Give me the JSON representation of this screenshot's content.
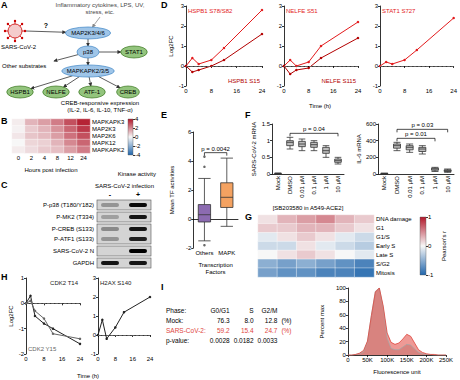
{
  "diagram": {
    "panel": "A",
    "stimulus": "Inflammatory cytokines, LPS, UV, stress, etc.",
    "virus": "SARS-CoV-2",
    "virus_link": "?",
    "nodes": [
      {
        "label": "MAP2K3/4/6",
        "kind": "kinase"
      },
      {
        "label": "p38",
        "kind": "kinase"
      },
      {
        "label": "STAT1",
        "kind": "substrate"
      },
      {
        "label": "MAPKAPK2/3/5",
        "kind": "kinase"
      },
      {
        "label": "HSPB1",
        "kind": "substrate"
      },
      {
        "label": "NELFE",
        "kind": "substrate"
      },
      {
        "label": "ATF-1",
        "kind": "substrate"
      },
      {
        "label": "CREB",
        "kind": "substrate"
      }
    ],
    "edges": [
      [
        0,
        1
      ],
      [
        1,
        2
      ],
      [
        1,
        3
      ],
      [
        3,
        4
      ],
      [
        3,
        5
      ],
      [
        3,
        6
      ],
      [
        3,
        7
      ]
    ],
    "side_branch": "Other substrates",
    "output": "CREB-responsive expression (IL-2, IL-6, IL-10, TNF-α)"
  },
  "blot": {
    "panel": "C",
    "title": "SARS-CoV-2 infection",
    "lanes": [
      "-",
      "+"
    ],
    "rows": [
      {
        "labels": [
          "P-p38 (T180/Y182)"
        ],
        "bands": [
          [
            0.3,
            0.95
          ]
        ]
      },
      {
        "labels": [
          "P-MK2 (T334)"
        ],
        "bands": [
          [
            0.25,
            0.9
          ]
        ]
      },
      {
        "labels": [
          "P-CREB (S133)",
          "P-ATF1 (S133)"
        ],
        "bands": [
          [
            0.35,
            0.9
          ],
          [
            0.3,
            0.85
          ]
        ]
      },
      {
        "labels": [
          "SARS-CoV-2 N"
        ],
        "bands": [
          [
            0,
            1
          ]
        ]
      },
      {
        "labels": [
          "GAPDH"
        ],
        "bands": [
          [
            0.9,
            0.9
          ]
        ]
      }
    ]
  },
  "chart_data": [
    {
      "panel": "B",
      "type": "heatmap",
      "categories": [
        "0",
        "2",
        "4",
        "8",
        "12",
        "24"
      ],
      "rows": [
        "MAPKAPK3",
        "MAP2K3",
        "MAP2K6",
        "MAPK12",
        "MAPKAPK2"
      ],
      "cells": [
        [
          0.2,
          1.2,
          1.6,
          2.2,
          3.0,
          3.8
        ],
        [
          0.1,
          0.8,
          1.2,
          1.8,
          2.6,
          3.4
        ],
        [
          0.3,
          0.9,
          1.1,
          1.6,
          2.4,
          3.0
        ],
        [
          0.0,
          0.6,
          0.7,
          1.2,
          2.0,
          2.6
        ],
        [
          0.2,
          0.5,
          0.8,
          1.0,
          1.6,
          2.2
        ]
      ],
      "x_label": "Hours post infection",
      "colorbar": {
        "label": "Kinase activity",
        "range": [
          -4,
          4
        ],
        "ticks": [
          -4,
          -2,
          0,
          2,
          4
        ],
        "colors": [
          "#2166ac",
          "#f7f7f7",
          "#b2182b"
        ]
      }
    },
    {
      "panel": "D",
      "type": "line",
      "x_label": "Time (h)",
      "y_label": "Log2FC",
      "hline": 0,
      "subplots": [
        {
          "x": [
            0,
            2,
            4,
            8,
            12,
            24
          ],
          "xlim": [
            0,
            24
          ],
          "xticks": [
            0,
            8,
            16,
            24
          ],
          "ylim": [
            -1,
            3
          ],
          "yticks": [
            -1,
            0,
            1,
            2,
            3
          ],
          "series": [
            {
              "name": "HSPB1 S78/S82",
              "color": "#e31a1c",
              "values": [
                0,
                0.4,
                0.1,
                0.3,
                0.9,
                2.8
              ]
            },
            {
              "name": "HSPB1 S15",
              "color": "#b30000",
              "values": [
                0,
                -0.3,
                -0.2,
                0,
                0.3,
                1.6
              ]
            }
          ]
        },
        {
          "x": [
            0,
            2,
            4,
            8,
            12,
            24
          ],
          "xlim": [
            0,
            24
          ],
          "xticks": [
            0,
            8,
            16,
            24
          ],
          "ylim": [
            -1,
            3
          ],
          "yticks": [
            -1,
            0,
            1,
            2,
            3
          ],
          "series": [
            {
              "name": "NELFE S51",
              "color": "#e31a1c",
              "values": [
                0,
                0.3,
                0,
                0.2,
                1.0,
                2.2
              ]
            },
            {
              "name": "NELFE S115",
              "color": "#b30000",
              "values": [
                0,
                -0.4,
                -0.2,
                -0.1,
                0.4,
                1.4
              ]
            }
          ]
        },
        {
          "x": [
            0,
            2,
            4,
            8,
            12,
            24
          ],
          "xlim": [
            0,
            24
          ],
          "xticks": [
            0,
            8,
            16,
            24
          ],
          "ylim": [
            -1,
            3
          ],
          "yticks": [
            -1,
            0,
            1,
            2,
            3
          ],
          "series": [
            {
              "name": "STAT1 S727",
              "color": "#e31a1c",
              "values": [
                0,
                0.2,
                0.1,
                0.3,
                0.8,
                2.4
              ]
            }
          ]
        }
      ]
    },
    {
      "panel": "E",
      "type": "boxplot",
      "categories": [
        "Others",
        "MAPK"
      ],
      "x_label": "Transcription Factors",
      "y_label": "Mean TF activities",
      "ylim": [
        -2,
        6
      ],
      "yticks": [
        -2,
        0,
        2,
        4,
        6
      ],
      "boxes": [
        [
          -1.5,
          -0.2,
          0.3,
          1.0,
          2.8
        ],
        [
          -0.5,
          0.8,
          1.5,
          2.5,
          4.2
        ]
      ],
      "outliers": [
        [
          3.6,
          4.3,
          -1.8
        ],
        []
      ],
      "colors": [
        "#8c6bb1",
        "#f4a261"
      ],
      "annotations": [
        {
          "text": "p = 0.0042",
          "between": [
            0,
            1
          ]
        }
      ]
    },
    {
      "panel": "F",
      "type": "boxplot",
      "categories": [
        "Mock",
        "DMSO",
        "0.01 μM",
        "0.1 μM",
        "1 μM",
        "10 μM"
      ],
      "caption": "[SB203580 in A549-ACE2]",
      "color": "#bdbdbd",
      "subplots": [
        {
          "y_label": "SARS-CoV-2 mRNA",
          "ylim": [
            0,
            1.5
          ],
          "yticks": [
            0,
            0.5,
            1,
            1.5
          ],
          "boxes": [
            [
              0,
              0,
              0.01,
              0.02,
              0.03
            ],
            [
              0.75,
              0.85,
              0.95,
              1.0,
              1.1
            ],
            [
              0.7,
              0.82,
              0.9,
              0.98,
              1.05
            ],
            [
              0.7,
              0.8,
              0.88,
              0.95,
              1.0
            ],
            [
              0.5,
              0.62,
              0.7,
              0.8,
              0.85
            ],
            [
              0.3,
              0.35,
              0.4,
              0.45,
              0.5
            ]
          ],
          "annotations": [
            {
              "text": "p = 0.04",
              "between": [
                1,
                5
              ]
            }
          ]
        },
        {
          "y_label": "IL-6 mRNA",
          "ylim": [
            0,
            600
          ],
          "yticks": [
            0,
            200,
            400,
            600
          ],
          "boxes": [
            [
              0,
              2,
              5,
              8,
              10
            ],
            [
              280,
              310,
              340,
              360,
              380
            ],
            [
              260,
              290,
              320,
              340,
              360
            ],
            [
              240,
              270,
              300,
              320,
              340
            ],
            [
              30,
              45,
              60,
              70,
              80
            ],
            [
              20,
              30,
              40,
              50,
              60
            ]
          ],
          "annotations": [
            {
              "text": "p = 0.01",
              "between": [
                1,
                4
              ]
            },
            {
              "text": "p = 0.03",
              "between": [
                1,
                5
              ]
            }
          ]
        }
      ]
    },
    {
      "panel": "G",
      "type": "heatmap",
      "categories": [
        null,
        null,
        null,
        null,
        null,
        null
      ],
      "rows": [
        "DNA damage",
        "G1",
        "G1/S",
        "Early S",
        "Late S",
        "S/G2",
        "Mitosis"
      ],
      "cells": [
        [
          0.1,
          0.3,
          0.4,
          0.5,
          0.3,
          0.2
        ],
        [
          0.2,
          0.2,
          0.3,
          0.3,
          0.2,
          0.1
        ],
        [
          -0.1,
          0.1,
          0.2,
          0.1,
          -0.1,
          -0.2
        ],
        [
          -0.2,
          -0.2,
          0.1,
          -0.1,
          -0.2,
          -0.3
        ],
        [
          0.0,
          0.1,
          0.2,
          0.1,
          0.0,
          -0.1
        ],
        [
          -0.5,
          -0.6,
          -0.5,
          -0.6,
          -0.7,
          -0.8
        ],
        [
          -0.6,
          -0.7,
          -0.7,
          -0.8,
          -0.8,
          -0.9
        ]
      ],
      "colorbar": {
        "label": "Pearson's r",
        "range": [
          -1,
          1
        ],
        "ticks": [
          -1,
          0,
          1
        ],
        "colors": [
          "#2166ac",
          "#f7f7f7",
          "#b2182b"
        ]
      }
    },
    {
      "panel": "H",
      "type": "line",
      "x_label": "Time (h)",
      "y_label": "Log2FC",
      "hline": 0,
      "subplots": [
        {
          "x": [
            0,
            2,
            4,
            8,
            12,
            24
          ],
          "xlim": [
            0,
            24
          ],
          "xticks": [
            0,
            8,
            16,
            24
          ],
          "ylim": [
            -2,
            1
          ],
          "yticks": [
            -2,
            -1,
            0,
            1
          ],
          "series": [
            {
              "name": "CDK2 T14",
              "color": "#222222",
              "values": [
                0,
                0.3,
                -0.5,
                -0.8,
                -1.0,
                -1.6
              ]
            },
            {
              "name": "CDK2 Y15",
              "color": "#666666",
              "values": [
                0,
                0.1,
                -0.3,
                -0.6,
                -1.2,
                -1.4
              ]
            }
          ]
        },
        {
          "x": [
            0,
            2,
            4,
            8,
            12,
            24
          ],
          "xlim": [
            0,
            24
          ],
          "xticks": [
            0,
            8,
            16,
            24
          ],
          "ylim": [
            -1,
            3
          ],
          "yticks": [
            -1,
            0,
            1,
            2,
            3
          ],
          "series": [
            {
              "name": "H2AX S140",
              "color": "#222222",
              "values": [
                0,
                0.8,
                -0.2,
                0.4,
                1.2,
                2.0
              ]
            }
          ]
        }
      ]
    },
    {
      "panel": "I",
      "type": "area",
      "x": [
        0,
        10000,
        20000,
        30000,
        40000,
        50000,
        60000,
        70000,
        80000,
        90000,
        100000,
        110000,
        120000,
        130000,
        140000,
        150000,
        160000,
        170000,
        180000,
        190000,
        200000,
        210000,
        220000,
        230000,
        240000,
        250000
      ],
      "xlim": [
        0,
        250000
      ],
      "xticks": [
        0,
        {
          "value": 50000,
          "label": "50K"
        },
        {
          "value": 100000,
          "label": "100K"
        },
        {
          "value": 150000,
          "label": "150K"
        },
        {
          "value": 200000,
          "label": "200K"
        },
        {
          "value": 250000,
          "label": "250K"
        }
      ],
      "ylim": [
        0,
        100
      ],
      "yticks": [
        0,
        20,
        40,
        60,
        80,
        100
      ],
      "x_label": "Fluorescence unit",
      "y_label": "Percent max",
      "series": [
        {
          "name": "Mock:",
          "color": "#a6a6a6",
          "phase_percent": [
            "76.3",
            "8.0",
            "12.8"
          ],
          "values": [
            0,
            0,
            1,
            2,
            5,
            20,
            60,
            95,
            100,
            70,
            25,
            10,
            8,
            8,
            12,
            16,
            15,
            9,
            4,
            2,
            1,
            1,
            0,
            0,
            0,
            0
          ]
        },
        {
          "name": "SARS-CoV-2:",
          "color": "#e0463e",
          "phase_percent": [
            "59.2",
            "15.4",
            "24.7"
          ],
          "values": [
            0,
            0,
            1,
            3,
            7,
            21,
            59,
            94,
            100,
            73,
            33,
            19,
            16,
            18,
            24,
            31,
            28,
            18,
            8,
            4,
            2,
            1,
            1,
            0,
            0,
            0
          ]
        }
      ],
      "table": {
        "header": "Phase:",
        "phases": [
          "G0/G1",
          "S",
          "G2/M"
        ],
        "unit": "(%)",
        "p_label": "p-value:",
        "p_values": [
          "0.0028",
          "0.0182",
          "0.0033"
        ]
      }
    }
  ]
}
